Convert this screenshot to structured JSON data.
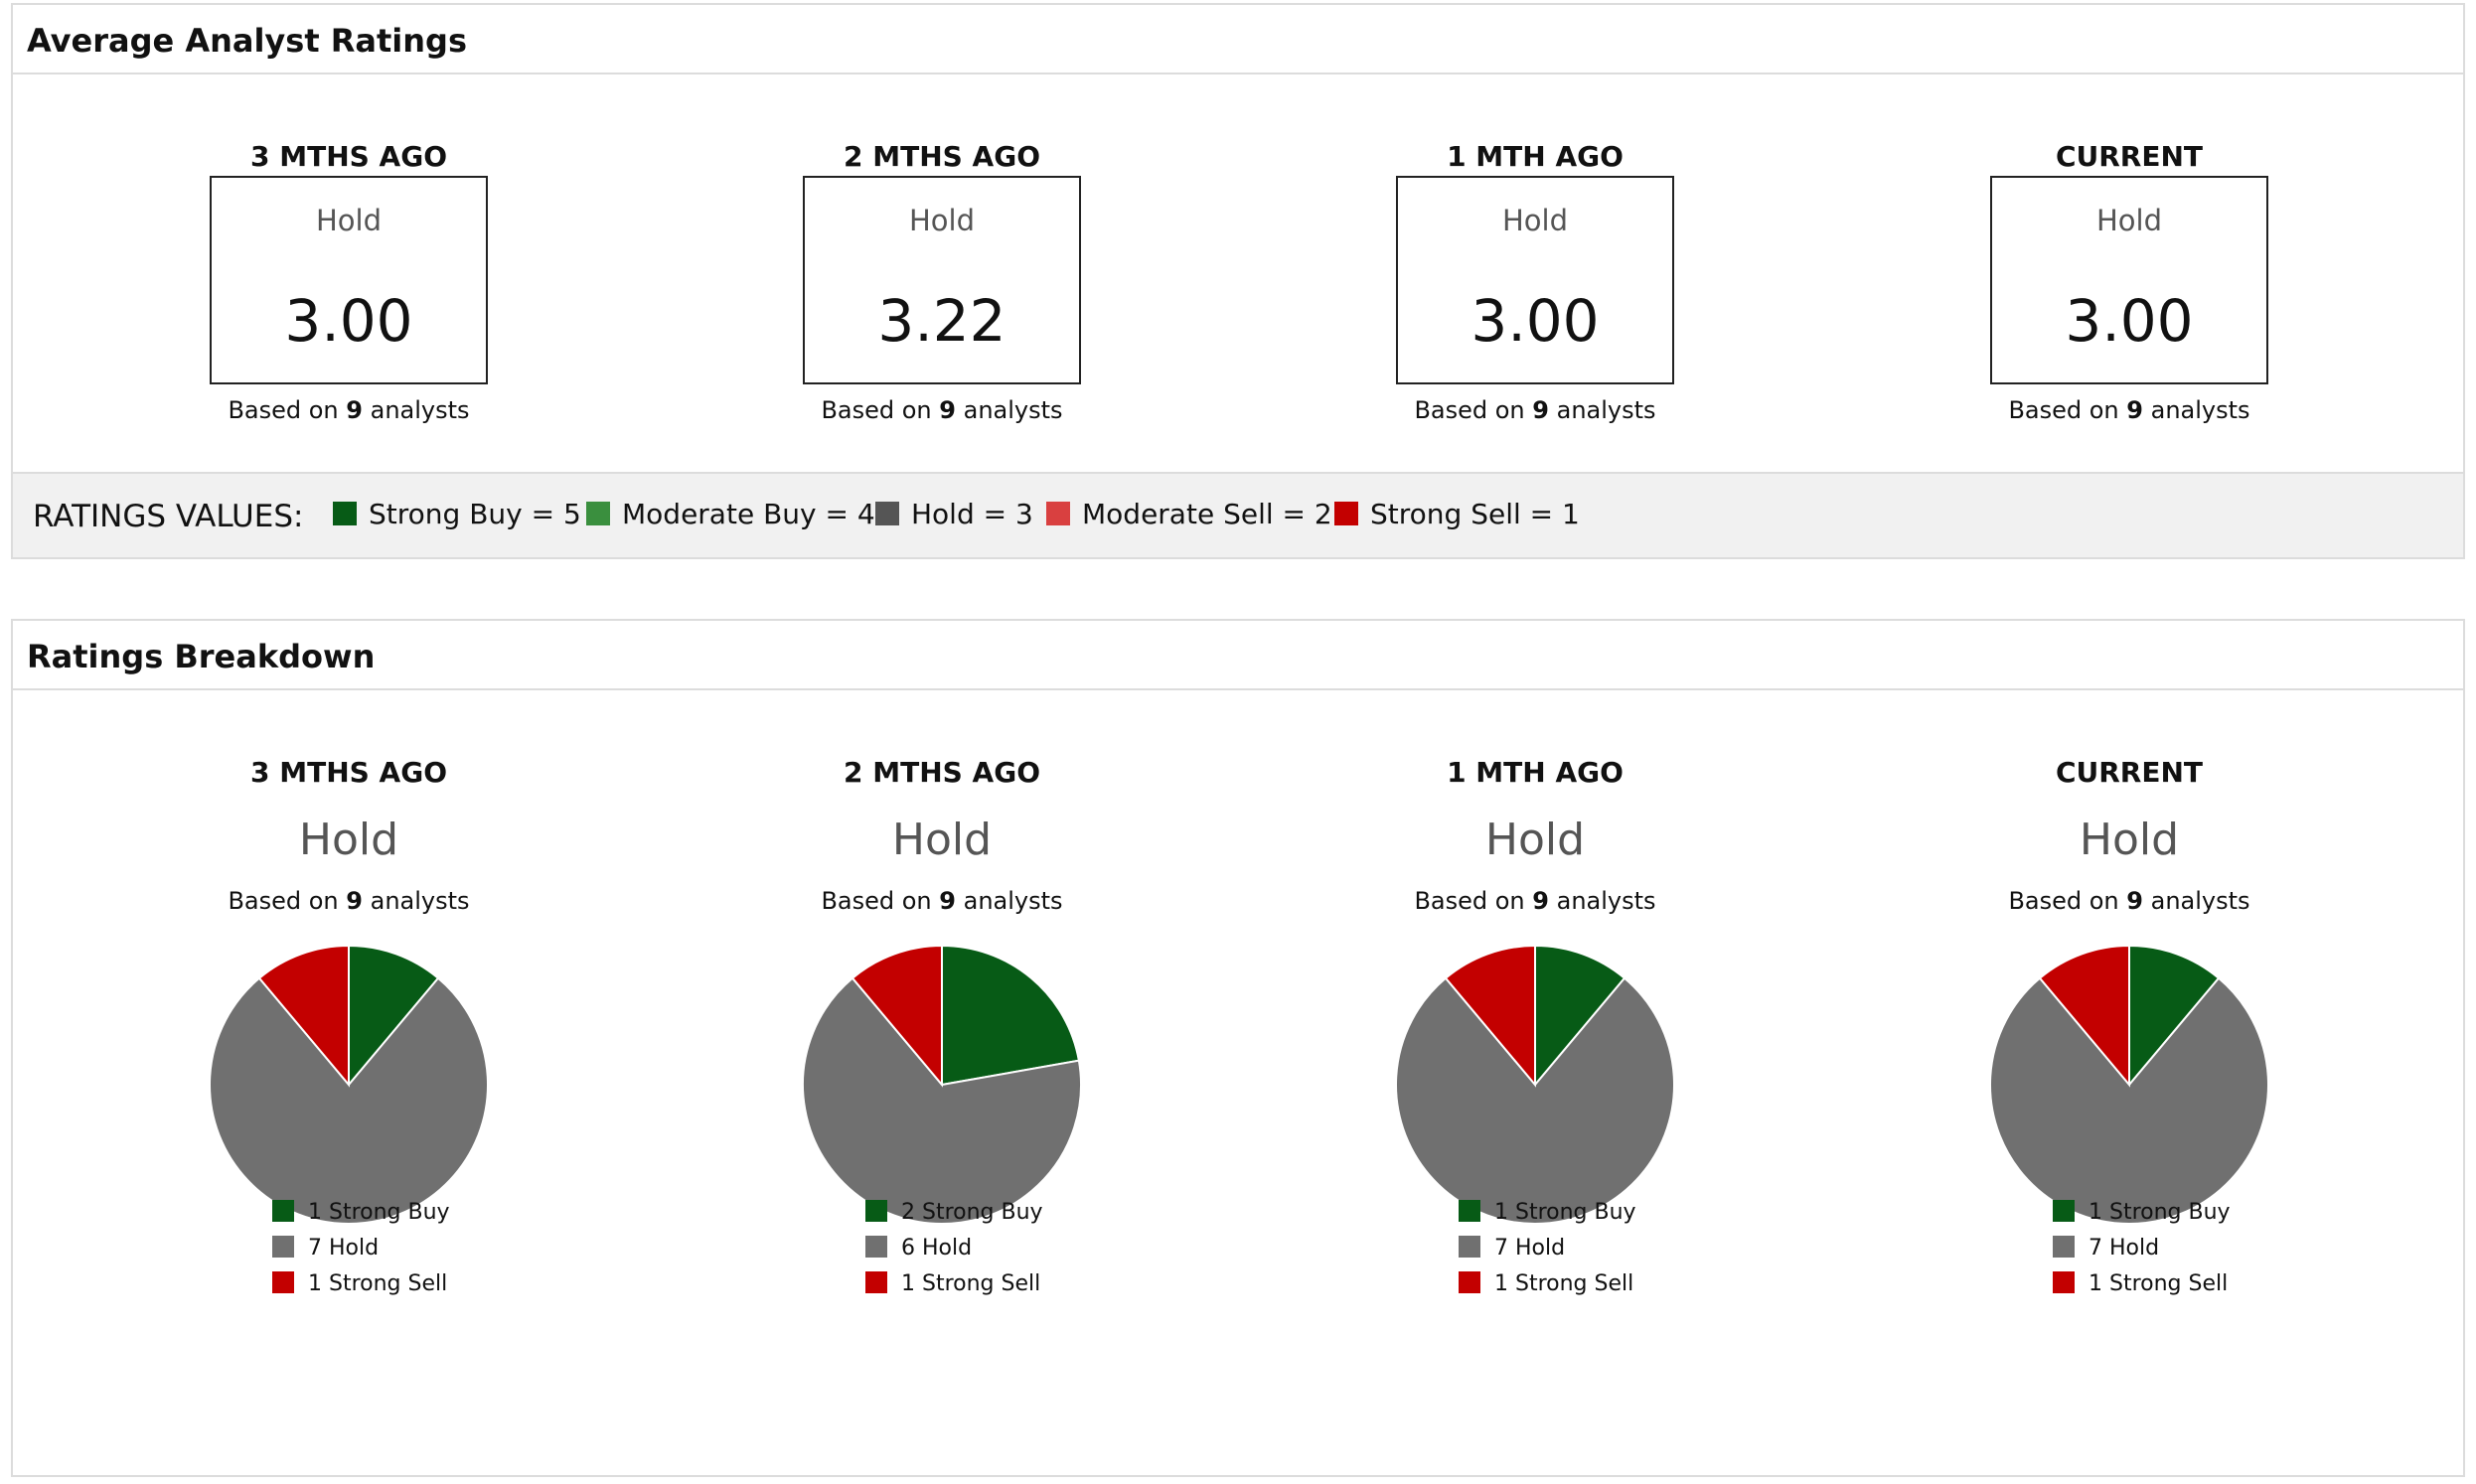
{
  "avg": {
    "title": "Average Analyst Ratings",
    "periods": [
      {
        "label": "3 MTHS AGO",
        "rating": "Hold",
        "value": "3.00",
        "based_prefix": "Based on",
        "count": "9",
        "based_suffix": "analysts"
      },
      {
        "label": "2 MTHS AGO",
        "rating": "Hold",
        "value": "3.22",
        "based_prefix": "Based on",
        "count": "9",
        "based_suffix": "analysts"
      },
      {
        "label": "1 MTH AGO",
        "rating": "Hold",
        "value": "3.00",
        "based_prefix": "Based on",
        "count": "9",
        "based_suffix": "analysts"
      },
      {
        "label": "CURRENT",
        "rating": "Hold",
        "value": "3.00",
        "based_prefix": "Based on",
        "count": "9",
        "based_suffix": "analysts"
      }
    ],
    "legend": {
      "label": "RATINGS VALUES:",
      "items": [
        {
          "text": "Strong Buy = 5",
          "color": "#075b16"
        },
        {
          "text": "Moderate Buy = 4",
          "color": "#3a8f3e"
        },
        {
          "text": "Hold = 3",
          "color": "#555555"
        },
        {
          "text": "Moderate Sell = 2",
          "color": "#d94040"
        },
        {
          "text": "Strong Sell = 1",
          "color": "#c30000"
        }
      ]
    }
  },
  "breakdown": {
    "title": "Ratings Breakdown",
    "periods": [
      {
        "label": "3 MTHS AGO",
        "rating": "Hold",
        "based_prefix": "Based on",
        "count": "9",
        "based_suffix": "analysts"
      },
      {
        "label": "2 MTHS AGO",
        "rating": "Hold",
        "based_prefix": "Based on",
        "count": "9",
        "based_suffix": "analysts"
      },
      {
        "label": "1 MTH AGO",
        "rating": "Hold",
        "based_prefix": "Based on",
        "count": "9",
        "based_suffix": "analysts"
      },
      {
        "label": "CURRENT",
        "rating": "Hold",
        "based_prefix": "Based on",
        "count": "9",
        "based_suffix": "analysts"
      }
    ]
  },
  "chart_data": [
    {
      "type": "pie",
      "title": "3 MTHS AGO",
      "categories": [
        "Strong Buy",
        "Hold",
        "Strong Sell"
      ],
      "values": [
        1,
        7,
        1
      ],
      "colors": [
        "#075b16",
        "#707070",
        "#c30000"
      ],
      "legend": [
        "1 Strong Buy",
        "7 Hold",
        "1 Strong Sell"
      ]
    },
    {
      "type": "pie",
      "title": "2 MTHS AGO",
      "categories": [
        "Strong Buy",
        "Hold",
        "Strong Sell"
      ],
      "values": [
        2,
        6,
        1
      ],
      "colors": [
        "#075b16",
        "#707070",
        "#c30000"
      ],
      "legend": [
        "2 Strong Buy",
        "6 Hold",
        "1 Strong Sell"
      ]
    },
    {
      "type": "pie",
      "title": "1 MTH AGO",
      "categories": [
        "Strong Buy",
        "Hold",
        "Strong Sell"
      ],
      "values": [
        1,
        7,
        1
      ],
      "colors": [
        "#075b16",
        "#707070",
        "#c30000"
      ],
      "legend": [
        "1 Strong Buy",
        "7 Hold",
        "1 Strong Sell"
      ]
    },
    {
      "type": "pie",
      "title": "CURRENT",
      "categories": [
        "Strong Buy",
        "Hold",
        "Strong Sell"
      ],
      "values": [
        1,
        7,
        1
      ],
      "colors": [
        "#075b16",
        "#707070",
        "#c30000"
      ],
      "legend": [
        "1 Strong Buy",
        "7 Hold",
        "1 Strong Sell"
      ]
    }
  ]
}
